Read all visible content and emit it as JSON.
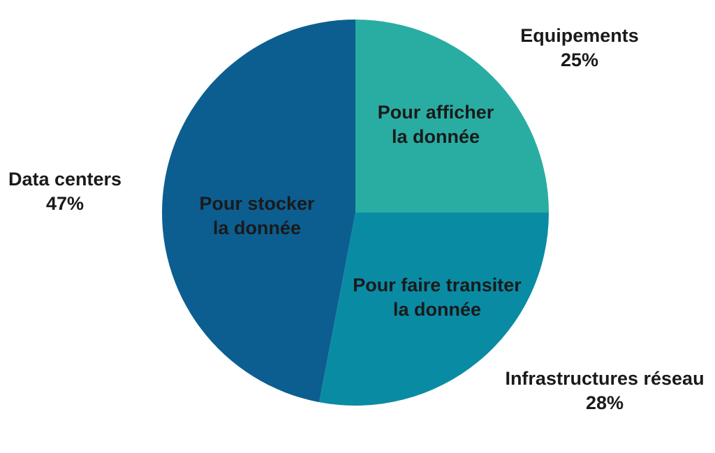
{
  "chart_data": {
    "type": "pie",
    "title": "",
    "unit": "%",
    "direction": "clockwise",
    "start_angle_deg": 0,
    "background": "#FFFFFF",
    "label_color": "#1A1A1A",
    "legend": "none",
    "slices": [
      {
        "name": "Equipements",
        "value": 25,
        "value_label": "25%",
        "color": "#29ADA2",
        "outer_label_lines": [
          "Equipements",
          "25%"
        ],
        "inner_label_lines": [
          "Pour afficher",
          "la donnée"
        ]
      },
      {
        "name": "Infrastructures réseau",
        "value": 28,
        "value_label": "28%",
        "color": "#0A8BA4",
        "outer_label_lines": [
          "Infrastructures réseau",
          "28%"
        ],
        "inner_label_lines": [
          "Pour faire transiter",
          "la donnée"
        ]
      },
      {
        "name": "Data centers",
        "value": 47,
        "value_label": "47%",
        "color": "#0C5E90",
        "outer_label_lines": [
          "Data centers",
          "47%"
        ],
        "inner_label_lines": [
          "Pour stocker",
          "la donnée"
        ]
      }
    ]
  }
}
